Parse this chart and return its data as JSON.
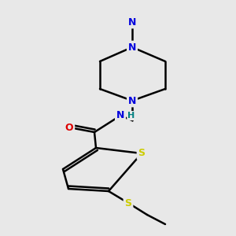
{
  "bg_color": "#e8e8e8",
  "atom_colors": {
    "N": "#0000dd",
    "O": "#dd0000",
    "S_thio": "#cccc00",
    "S_ring": "#cccc00",
    "H": "#008080"
  },
  "bond_color": "#000000",
  "bond_width": 1.8,
  "figsize": [
    3.0,
    3.0
  ],
  "dpi": 100
}
